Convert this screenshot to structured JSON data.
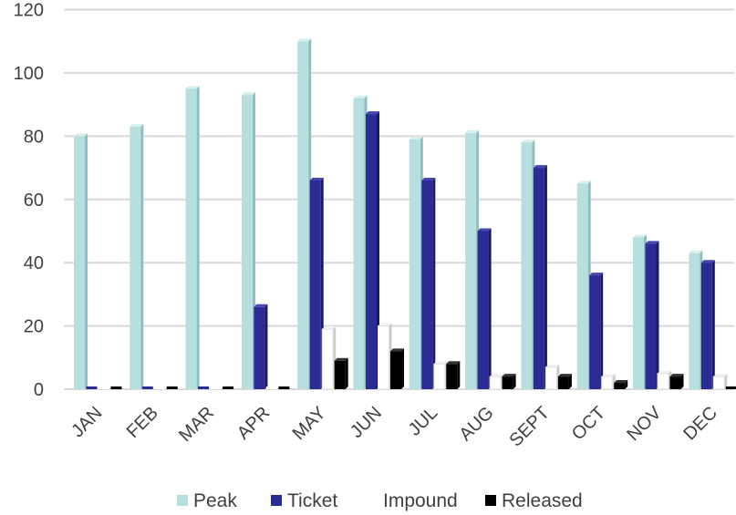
{
  "chart_data": {
    "type": "bar",
    "title": "",
    "xlabel": "",
    "ylabel": "",
    "ylim": [
      0,
      120
    ],
    "yticks": [
      "0",
      "20",
      "40",
      "60",
      "80",
      "100",
      "120"
    ],
    "categories": [
      "JAN",
      "FEB",
      "MAR",
      "APR",
      "MAY",
      "JUN",
      "JUL",
      "AUG",
      "SEPT",
      "OCT",
      "NOV",
      "DEC"
    ],
    "series": [
      {
        "name": "Peak",
        "color": "#b7dfe0",
        "values": [
          80,
          83,
          95,
          93,
          110,
          92,
          79,
          81,
          78,
          65,
          48,
          43
        ]
      },
      {
        "name": "Ticket",
        "color": "#2b2b96",
        "values": [
          0,
          0,
          0,
          26,
          66,
          87,
          66,
          50,
          70,
          36,
          46,
          40
        ]
      },
      {
        "name": "Impound",
        "color": "#ffffff",
        "values": [
          0,
          0,
          0,
          0,
          19,
          20,
          8,
          4,
          7,
          4,
          5,
          4
        ]
      },
      {
        "name": "Released",
        "color": "#000000",
        "values": [
          0,
          0,
          0,
          0,
          9,
          12,
          8,
          4,
          4,
          2,
          4,
          0
        ]
      }
    ],
    "grid": true,
    "legend_position": "bottom"
  }
}
